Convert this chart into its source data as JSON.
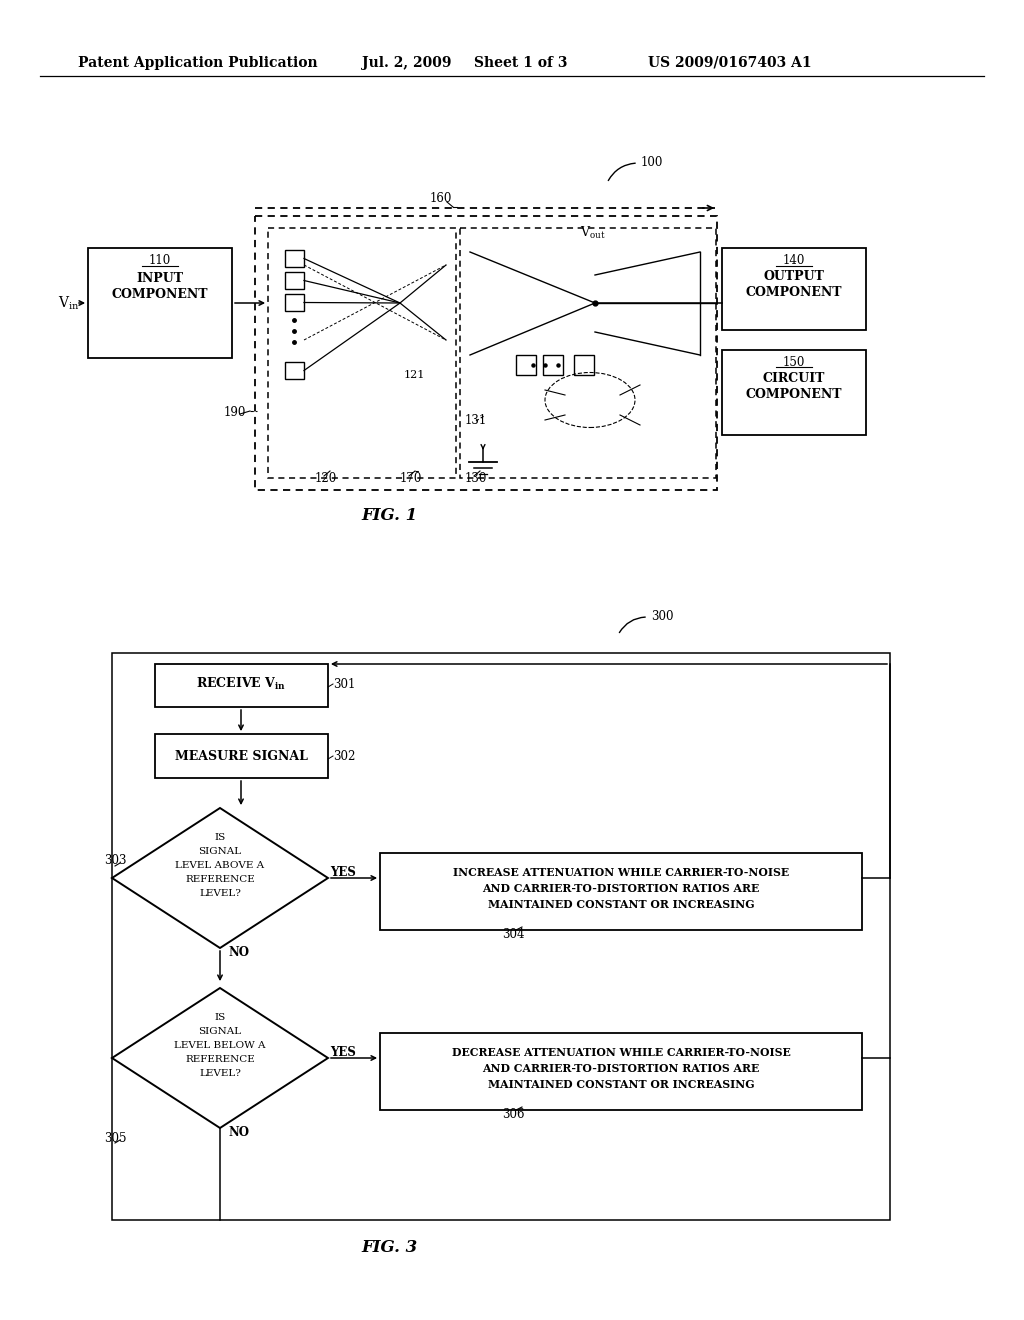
{
  "bg_color": "#ffffff",
  "header_text": "Patent Application Publication",
  "header_date": "Jul. 2, 2009",
  "header_sheet": "Sheet 1 of 3",
  "header_patent": "US 2009/0167403 A1",
  "fig1_label": "FIG. 1",
  "fig3_label": "FIG. 3",
  "fig1_ref": "100",
  "fig3_ref": "300",
  "fig3_box304_text1": "INCREASE ATTENUATION WHILE CARRIER-TO-NOISE",
  "fig3_box304_text2": "AND CARRIER-TO-DISTORTION RATIOS ARE",
  "fig3_box304_text3": "MAINTAINED CONSTANT OR INCREASING",
  "fig3_box306_text1": "DECREASE ATTENUATION WHILE CARRIER-TO-NOISE",
  "fig3_box306_text2": "AND CARRIER-TO-DISTORTION RATIOS ARE",
  "fig3_box306_text3": "MAINTAINED CONSTANT OR INCREASING"
}
